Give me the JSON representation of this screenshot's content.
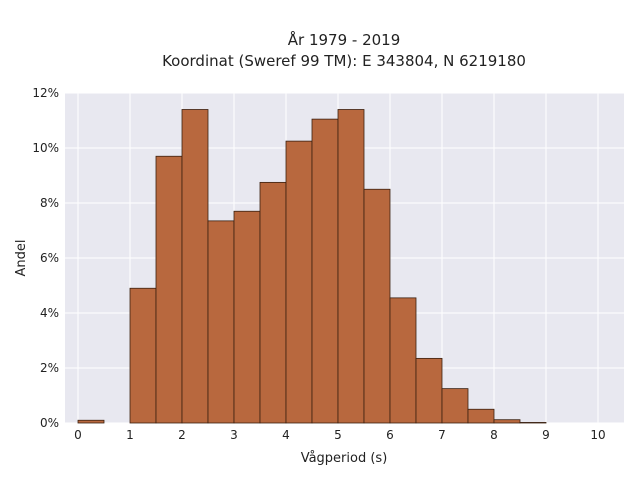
{
  "chart_data": {
    "type": "bar",
    "title_lines": [
      "År 1979 - 2019",
      "Koordinat (Sweref 99 TM): E 343804, N 6219180"
    ],
    "xlabel": "Vågperiod (s)",
    "ylabel": "Andel",
    "xlim": [
      -0.25,
      10.5
    ],
    "ylim": [
      0,
      12
    ],
    "x_ticks": [
      0,
      1,
      2,
      3,
      4,
      5,
      6,
      7,
      8,
      9,
      10
    ],
    "x_tick_labels": [
      "0",
      "1",
      "2",
      "3",
      "4",
      "5",
      "6",
      "7",
      "8",
      "9",
      "10"
    ],
    "y_ticks": [
      0,
      2,
      4,
      6,
      8,
      10,
      12
    ],
    "y_tick_labels": [
      "0%",
      "2%",
      "4%",
      "6%",
      "8%",
      "10%",
      "12%"
    ],
    "grid": true,
    "bar_color": "#b8683e",
    "edge_color": "#3a2010",
    "background": "#e8e8f0",
    "bins": [
      {
        "x0": 0.0,
        "x1": 0.5,
        "value": 0.1
      },
      {
        "x0": 0.5,
        "x1": 1.0,
        "value": 0.0
      },
      {
        "x0": 1.0,
        "x1": 1.5,
        "value": 4.9
      },
      {
        "x0": 1.5,
        "x1": 2.0,
        "value": 9.7
      },
      {
        "x0": 2.0,
        "x1": 2.5,
        "value": 11.4
      },
      {
        "x0": 2.5,
        "x1": 3.0,
        "value": 7.35
      },
      {
        "x0": 3.0,
        "x1": 3.5,
        "value": 7.7
      },
      {
        "x0": 3.5,
        "x1": 4.0,
        "value": 8.75
      },
      {
        "x0": 4.0,
        "x1": 4.5,
        "value": 10.25
      },
      {
        "x0": 4.5,
        "x1": 5.0,
        "value": 11.05
      },
      {
        "x0": 5.0,
        "x1": 5.5,
        "value": 11.4
      },
      {
        "x0": 5.5,
        "x1": 6.0,
        "value": 8.5
      },
      {
        "x0": 6.0,
        "x1": 6.5,
        "value": 4.55
      },
      {
        "x0": 6.5,
        "x1": 7.0,
        "value": 2.35
      },
      {
        "x0": 7.0,
        "x1": 7.5,
        "value": 1.25
      },
      {
        "x0": 7.5,
        "x1": 8.0,
        "value": 0.5
      },
      {
        "x0": 8.0,
        "x1": 8.5,
        "value": 0.12
      },
      {
        "x0": 8.5,
        "x1": 9.0,
        "value": 0.02
      }
    ]
  }
}
